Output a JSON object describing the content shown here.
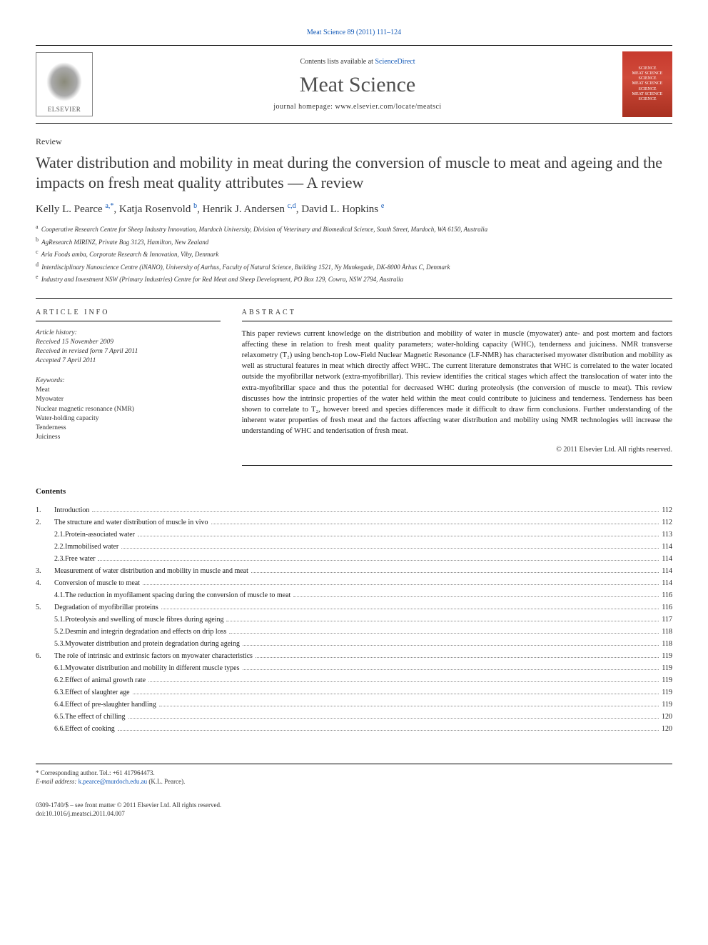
{
  "journal_link_top": "Meat Science 89 (2011) 111–124",
  "header": {
    "contents_available": "Contents lists available at",
    "sciencedirect": "ScienceDirect",
    "journal_name": "Meat Science",
    "homepage_label": "journal homepage:",
    "homepage_url": "www.elsevier.com/locate/meatsci",
    "publisher": "ELSEVIER",
    "cover_lines": [
      "SCIENCE",
      "MEAT SCIENCE",
      "SCIENCE",
      "MEAT SCIENCE",
      "SCIENCE",
      "MEAT SCIENCE",
      "SCIENCE"
    ]
  },
  "article": {
    "type": "Review",
    "title": "Water distribution and mobility in meat during the conversion of muscle to meat and ageing and the impacts on fresh meat quality attributes — A review",
    "authors_html": "Kelly L. Pearce <sup>a,*</sup>, Katja Rosenvold <sup>b</sup>, Henrik J. Andersen <sup>c,d</sup>, David L. Hopkins <sup>e</sup>",
    "affiliations": [
      {
        "tag": "a",
        "text": "Cooperative Research Centre for Sheep Industry Innovation, Murdoch University, Division of Veterinary and Biomedical Science, South Street, Murdoch, WA 6150, Australia"
      },
      {
        "tag": "b",
        "text": "AgResearch MIRINZ, Private Bag 3123, Hamilton, New Zealand"
      },
      {
        "tag": "c",
        "text": "Arla Foods amba, Corporate Research & Innovation, Viby, Denmark"
      },
      {
        "tag": "d",
        "text": "Interdisciplinary Nanoscience Centre (iNANO), University of Aarhus, Faculty of Natural Science, Building 1521, Ny Munkegade, DK-8000 Århus C, Denmark"
      },
      {
        "tag": "e",
        "text": "Industry and Investment NSW (Primary Industries) Centre for Red Meat and Sheep Development, PO Box 129, Cowra, NSW 2794, Australia"
      }
    ]
  },
  "info": {
    "heading": "ARTICLE INFO",
    "history_label": "Article history:",
    "received": "Received 15 November 2009",
    "revised": "Received in revised form 7 April 2011",
    "accepted": "Accepted 7 April 2011",
    "keywords_label": "Keywords:",
    "keywords": [
      "Meat",
      "Myowater",
      "Nuclear magnetic resonance (NMR)",
      "Water-holding capacity",
      "Tenderness",
      "Juiciness"
    ]
  },
  "abstract": {
    "heading": "ABSTRACT",
    "text": "This paper reviews current knowledge on the distribution and mobility of water in muscle (myowater) ante- and post mortem and factors affecting these in relation to fresh meat quality parameters; water-holding capacity (WHC), tenderness and juiciness. NMR transverse relaxometry (T₂) using bench-top Low-Field Nuclear Magnetic Resonance (LF-NMR) has characterised myowater distribution and mobility as well as structural features in meat which directly affect WHC. The current literature demonstrates that WHC is correlated to the water located outside the myofibrillar network (extra-myofibrillar). This review identifies the critical stages which affect the translocation of water into the extra-myofibrillar space and thus the potential for decreased WHC during proteolysis (the conversion of muscle to meat). This review discusses how the intrinsic properties of the water held within the meat could contribute to juiciness and tenderness. Tenderness has been shown to correlate to T₂, however breed and species differences made it difficult to draw firm conclusions. Further understanding of the inherent water properties of fresh meat and the factors affecting water distribution and mobility using NMR technologies will increase the understanding of WHC and tenderisation of fresh meat.",
    "copyright": "© 2011 Elsevier Ltd. All rights reserved."
  },
  "contents": {
    "heading": "Contents",
    "items": [
      {
        "num": "1.",
        "title": "Introduction",
        "page": "112",
        "level": 1
      },
      {
        "num": "2.",
        "title": "The structure and water distribution of muscle in vivo",
        "page": "112",
        "level": 1
      },
      {
        "num": "2.1.",
        "title": "Protein-associated water",
        "page": "113",
        "level": 2
      },
      {
        "num": "2.2.",
        "title": "Immobilised water",
        "page": "114",
        "level": 2
      },
      {
        "num": "2.3.",
        "title": "Free water",
        "page": "114",
        "level": 2
      },
      {
        "num": "3.",
        "title": "Measurement of water distribution and mobility in muscle and meat",
        "page": "114",
        "level": 1
      },
      {
        "num": "4.",
        "title": "Conversion of muscle to meat",
        "page": "114",
        "level": 1
      },
      {
        "num": "4.1.",
        "title": "The reduction in myofilament spacing during the conversion of muscle to meat",
        "page": "116",
        "level": 2
      },
      {
        "num": "5.",
        "title": "Degradation of myofibrillar proteins",
        "page": "116",
        "level": 1
      },
      {
        "num": "5.1.",
        "title": "Proteolysis and swelling of muscle fibres during ageing",
        "page": "117",
        "level": 2
      },
      {
        "num": "5.2.",
        "title": "Desmin and integrin degradation and effects on drip loss",
        "page": "118",
        "level": 2
      },
      {
        "num": "5.3.",
        "title": "Myowater distribution and protein degradation during ageing",
        "page": "118",
        "level": 2
      },
      {
        "num": "6.",
        "title": "The role of intrinsic and extrinsic factors on myowater characteristics",
        "page": "119",
        "level": 1
      },
      {
        "num": "6.1.",
        "title": "Myowater distribution and mobility in different muscle types",
        "page": "119",
        "level": 2
      },
      {
        "num": "6.2.",
        "title": "Effect of animal growth rate",
        "page": "119",
        "level": 2
      },
      {
        "num": "6.3.",
        "title": "Effect of slaughter age",
        "page": "119",
        "level": 2
      },
      {
        "num": "6.4.",
        "title": "Effect of pre-slaughter handling",
        "page": "119",
        "level": 2
      },
      {
        "num": "6.5.",
        "title": "The effect of chilling",
        "page": "120",
        "level": 2
      },
      {
        "num": "6.6.",
        "title": "Effect of cooking",
        "page": "120",
        "level": 2
      }
    ]
  },
  "footer": {
    "corr": "* Corresponding author. Tel.: +61 417964473.",
    "email_label": "E-mail address:",
    "email": "k.pearce@murdoch.edu.au",
    "email_suffix": "(K.L. Pearce).",
    "front_matter": "0309-1740/$ – see front matter © 2011 Elsevier Ltd. All rights reserved.",
    "doi": "doi:10.1016/j.meatsci.2011.04.007"
  },
  "colors": {
    "link": "#1158b7",
    "text": "#1a1a1a",
    "muted": "#333333",
    "cover_bg": "#c73a2e"
  }
}
